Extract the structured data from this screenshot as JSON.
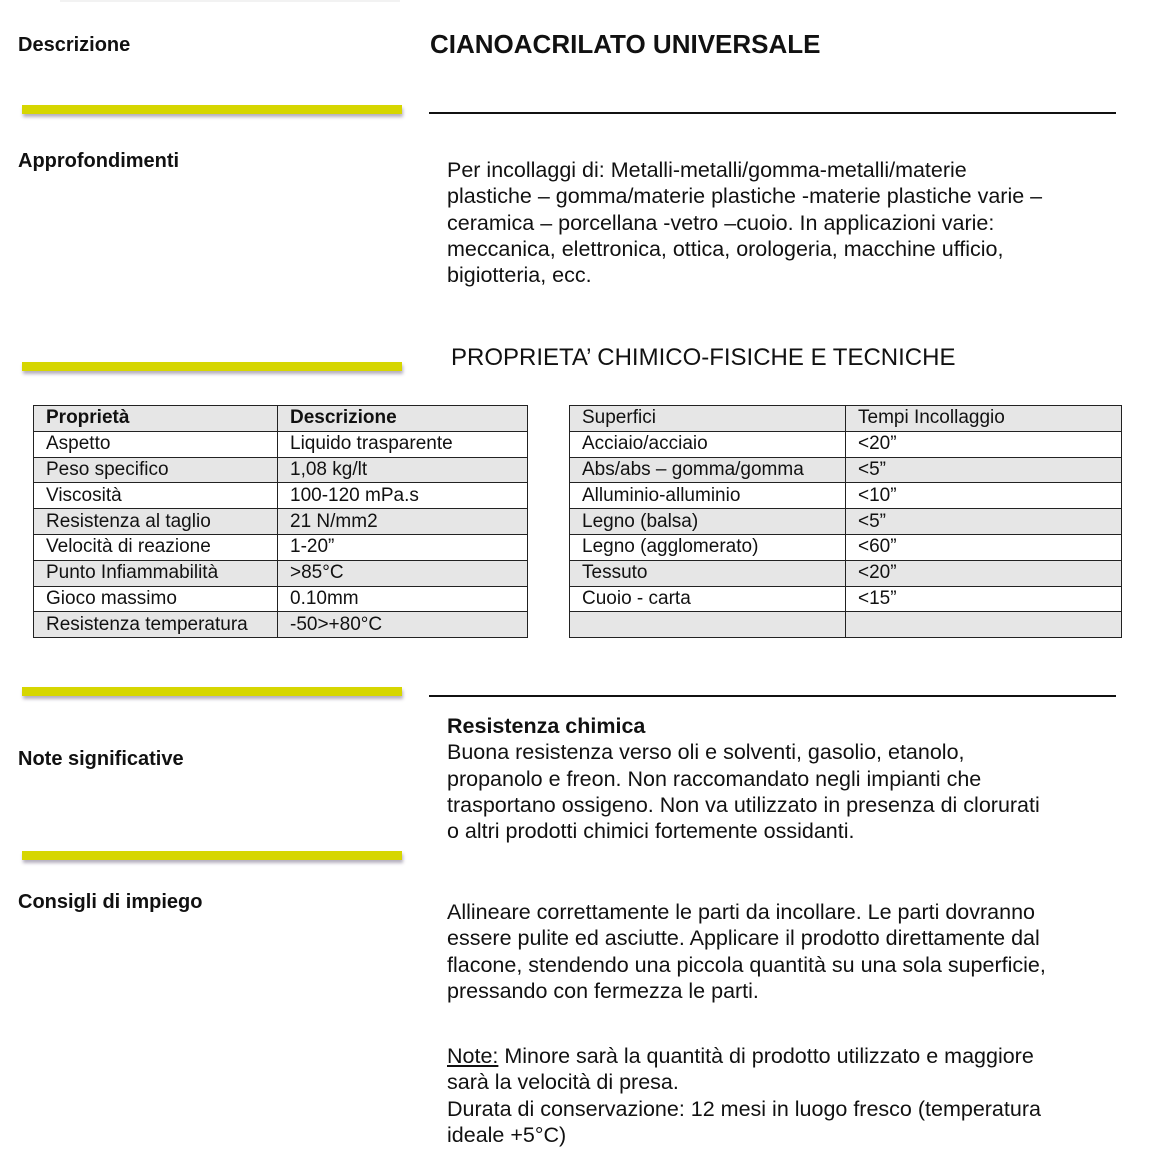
{
  "sections": {
    "descrizione": "Descrizione",
    "approfondimenti": "Approfondimenti",
    "note_significative": "Note significative",
    "consigli": "Consigli di impiego"
  },
  "title": "CIANOACRILATO UNIVERSALE",
  "approfondimenti_text": [
    "Per incollaggi di: Metalli-metalli/gomma-metalli/materie",
    "plastiche – gomma/materie plastiche -materie plastiche varie –",
    "ceramica – porcellana -vetro –cuoio. In applicazioni varie:",
    "meccanica, elettronica, ottica, orologeria, macchine ufficio,",
    "bigiotteria, ecc."
  ],
  "properties_heading": "PROPRIETA’ CHIMICO-FISICHE E TECNICHE",
  "table_properties": {
    "headers": [
      "Proprietà",
      "Descrizione"
    ],
    "rows": [
      [
        "Aspetto",
        "Liquido trasparente"
      ],
      [
        "Peso specifico",
        "1,08 kg/lt"
      ],
      [
        "Viscosità",
        "100-120 mPa.s"
      ],
      [
        "Resistenza al taglio",
        "21 N/mm2"
      ],
      [
        "Velocità di reazione",
        "1-20”"
      ],
      [
        "Punto Infiammabilità",
        ">85°C"
      ],
      [
        "Gioco massimo",
        "0.10mm"
      ],
      [
        "Resistenza temperatura",
        "-50>+80°C"
      ]
    ]
  },
  "table_surfaces": {
    "headers": [
      "Superfici",
      "Tempi Incollaggio"
    ],
    "rows": [
      [
        "Acciaio/acciaio",
        "<20”"
      ],
      [
        "Abs/abs – gomma/gomma",
        "<5”"
      ],
      [
        "Alluminio-alluminio",
        "<10”"
      ],
      [
        "Legno (balsa)",
        "<5”"
      ],
      [
        "Legno (agglomerato)",
        "<60”"
      ],
      [
        "Tessuto",
        "<20”"
      ],
      [
        "Cuoio - carta",
        "<15”"
      ],
      [
        "",
        ""
      ]
    ]
  },
  "resistenza": {
    "title": "Resistenza chimica",
    "lines": [
      "Buona resistenza verso oli e solventi, gasolio, etanolo,",
      "propanolo e freon. Non raccomandato negli impianti che",
      "trasportano ossigeno. Non va utilizzato in presenza di clorurati",
      "o altri prodotti chimici fortemente ossidanti."
    ]
  },
  "consigli_text": [
    "Allineare correttamente le parti da incollare. Le parti dovranno",
    "essere pulite ed asciutte. Applicare il prodotto direttamente dal",
    "flacone, stendendo una piccola quantità su una sola superficie,",
    "pressando con fermezza le parti."
  ],
  "note": {
    "label": "Note:",
    "line1_rest": " Minore sarà la quantità di prodotto utilizzato e maggiore",
    "lines": [
      "sarà la velocità di presa.",
      "Durata di conservazione: 12 mesi in luogo fresco (temperatura",
      "ideale +5°C)"
    ]
  },
  "colors": {
    "accent_bar": "#d6d600",
    "table_shade": "#e6e6e6"
  }
}
